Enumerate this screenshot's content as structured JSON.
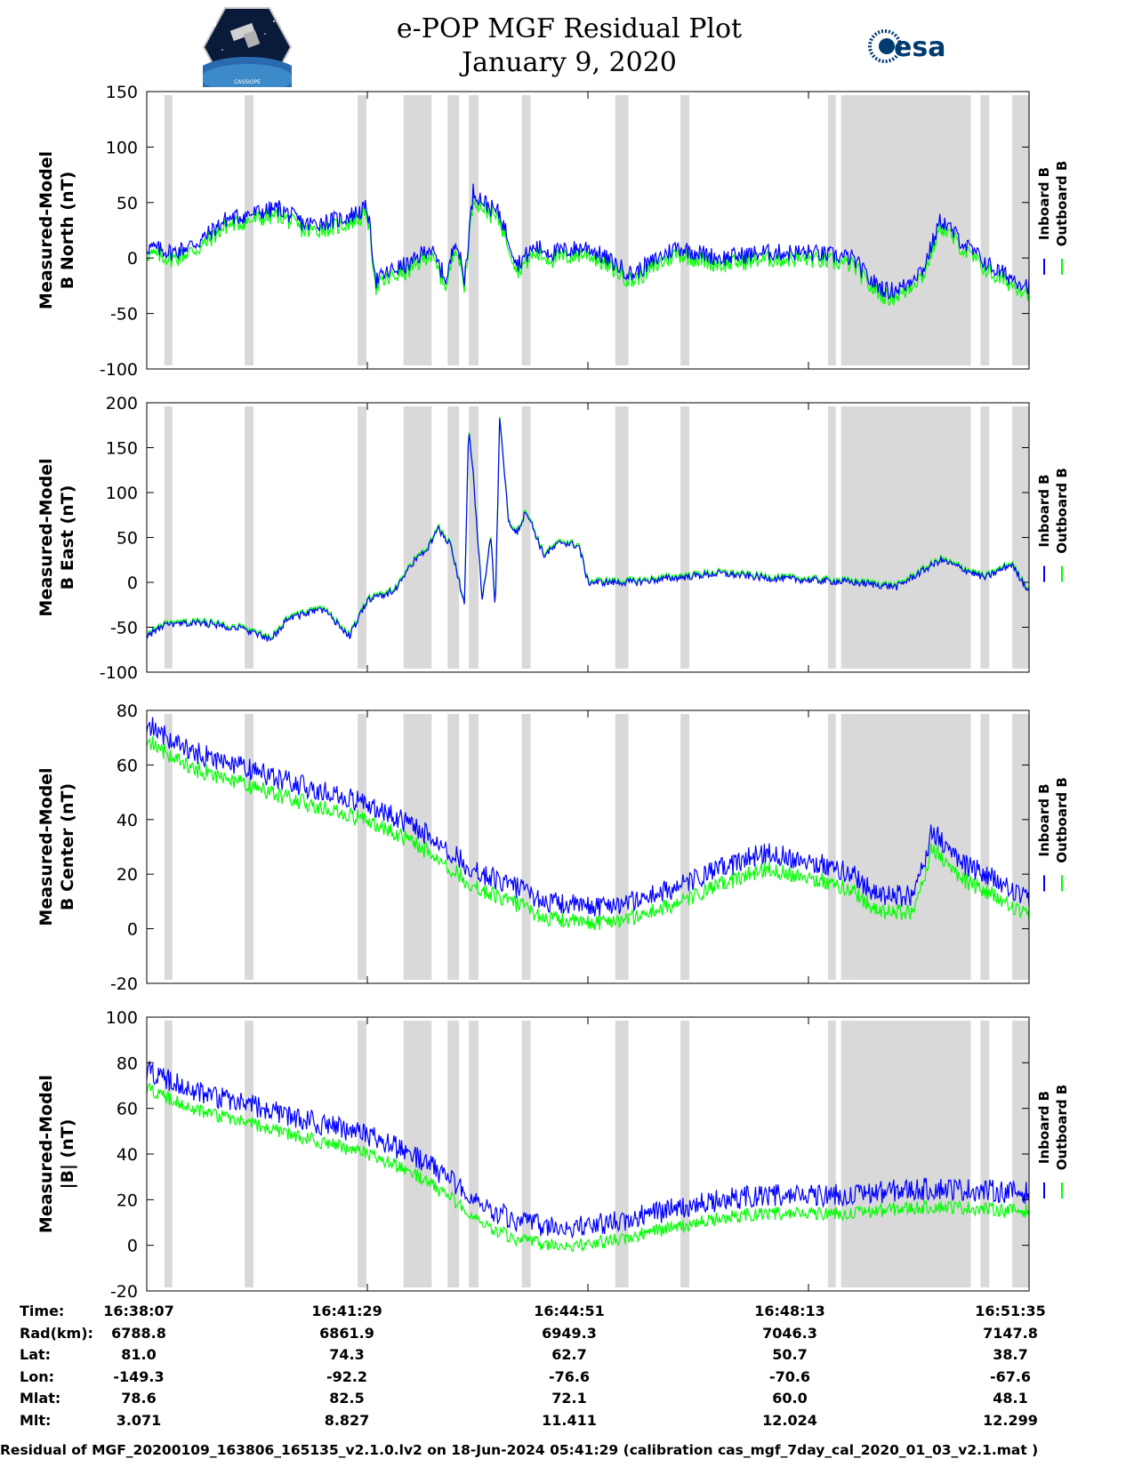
{
  "header": {
    "title_line1": "e-POP MGF Residual Plot",
    "title_line2": "January 9, 2020",
    "left_logo_text": "CASSIOPE",
    "right_logo_text": "esa"
  },
  "colors": {
    "inboard": "#0000ff",
    "outboard": "#00ff00",
    "gap": "#d9d9d9"
  },
  "legend": {
    "inboard": "Inboard B",
    "outboard": "Outboard B"
  },
  "gap_intervals_fraction": [
    [
      0.02,
      0.029
    ],
    [
      0.111,
      0.121
    ],
    [
      0.239,
      0.249
    ],
    [
      0.291,
      0.323
    ],
    [
      0.341,
      0.354
    ],
    [
      0.365,
      0.376
    ],
    [
      0.425,
      0.435
    ],
    [
      0.531,
      0.546
    ],
    [
      0.605,
      0.615
    ],
    [
      0.772,
      0.781
    ],
    [
      0.787,
      0.797
    ],
    [
      0.797,
      0.934
    ],
    [
      0.945,
      0.955
    ],
    [
      0.981,
      1.0
    ]
  ],
  "chart_data": [
    {
      "type": "line",
      "ylabel": "Measured-Model\nB North (nT)",
      "ylim": [
        -100,
        150
      ],
      "yticks": [
        -100,
        -50,
        0,
        50,
        100,
        150
      ],
      "x": [
        0,
        0.03,
        0.06,
        0.09,
        0.12,
        0.15,
        0.18,
        0.22,
        0.25,
        0.26,
        0.28,
        0.3,
        0.32,
        0.34,
        0.35,
        0.36,
        0.37,
        0.39,
        0.4,
        0.42,
        0.44,
        0.46,
        0.5,
        0.55,
        0.6,
        0.65,
        0.7,
        0.75,
        0.8,
        0.82,
        0.84,
        0.86,
        0.87,
        0.88,
        0.9,
        0.93,
        0.96,
        1.0
      ],
      "series": [
        {
          "name": "Inboard B",
          "offset": 0,
          "noise": 8,
          "values": [
            10,
            5,
            15,
            35,
            40,
            45,
            30,
            35,
            45,
            -20,
            -10,
            -5,
            10,
            -20,
            20,
            -20,
            60,
            45,
            40,
            -5,
            10,
            5,
            10,
            -15,
            10,
            0,
            5,
            5,
            0,
            -20,
            -30,
            -25,
            -15,
            -10,
            35,
            10,
            -10,
            -25
          ]
        },
        {
          "name": "Outboard B",
          "offset": -6,
          "noise": 8,
          "values": [
            10,
            5,
            15,
            35,
            40,
            45,
            30,
            35,
            45,
            -20,
            -10,
            -5,
            10,
            -20,
            20,
            -20,
            60,
            45,
            40,
            -5,
            10,
            5,
            10,
            -15,
            10,
            0,
            5,
            5,
            0,
            -20,
            -30,
            -25,
            -15,
            -10,
            35,
            10,
            -10,
            -25
          ]
        }
      ]
    },
    {
      "type": "line",
      "ylabel": "Measured-Model\nB East (nT)",
      "ylim": [
        -100,
        200
      ],
      "yticks": [
        -100,
        -50,
        0,
        50,
        100,
        150,
        200
      ],
      "x": [
        0,
        0.02,
        0.06,
        0.1,
        0.12,
        0.14,
        0.16,
        0.2,
        0.23,
        0.25,
        0.28,
        0.3,
        0.32,
        0.33,
        0.345,
        0.36,
        0.365,
        0.37,
        0.38,
        0.39,
        0.395,
        0.4,
        0.41,
        0.42,
        0.43,
        0.45,
        0.47,
        0.49,
        0.5,
        0.55,
        0.6,
        0.65,
        0.7,
        0.8,
        0.85,
        0.9,
        0.95,
        0.98,
        1.0
      ],
      "series": [
        {
          "name": "Inboard B",
          "offset": 0,
          "noise": 4,
          "values": [
            -60,
            -48,
            -45,
            -50,
            -55,
            -65,
            -40,
            -30,
            -60,
            -20,
            -10,
            20,
            40,
            60,
            40,
            -25,
            175,
            120,
            -20,
            50,
            -30,
            180,
            70,
            55,
            80,
            30,
            45,
            40,
            0,
            0,
            5,
            10,
            5,
            0,
            -5,
            25,
            5,
            20,
            -10
          ]
        },
        {
          "name": "Outboard B",
          "offset": 2,
          "noise": 4,
          "values": [
            -60,
            -48,
            -45,
            -50,
            -55,
            -65,
            -40,
            -30,
            -60,
            -20,
            -10,
            20,
            40,
            60,
            40,
            -25,
            175,
            120,
            -20,
            50,
            -30,
            180,
            70,
            55,
            80,
            30,
            45,
            40,
            0,
            0,
            5,
            10,
            5,
            0,
            -5,
            25,
            5,
            20,
            -10
          ]
        }
      ]
    },
    {
      "type": "line",
      "ylabel": "Measured-Model\nB Center (nT)",
      "ylim": [
        -20,
        80
      ],
      "yticks": [
        -20,
        0,
        20,
        40,
        60,
        80
      ],
      "x": [
        0,
        0.05,
        0.1,
        0.15,
        0.2,
        0.25,
        0.3,
        0.33,
        0.36,
        0.38,
        0.42,
        0.45,
        0.5,
        0.55,
        0.6,
        0.65,
        0.7,
        0.75,
        0.8,
        0.83,
        0.87,
        0.89,
        0.92,
        0.96,
        1.0
      ],
      "series": [
        {
          "name": "Inboard B",
          "offset": 0,
          "noise": 4,
          "values": [
            75,
            65,
            60,
            55,
            50,
            46,
            38,
            32,
            24,
            20,
            15,
            10,
            8,
            10,
            15,
            22,
            28,
            25,
            20,
            12,
            12,
            36,
            25,
            18,
            10
          ]
        },
        {
          "name": "Outboard B",
          "offset": -6,
          "noise": 3,
          "values": [
            75,
            65,
            60,
            55,
            50,
            46,
            38,
            32,
            24,
            20,
            15,
            10,
            8,
            10,
            15,
            22,
            28,
            25,
            20,
            12,
            12,
            36,
            25,
            18,
            10
          ]
        }
      ]
    },
    {
      "type": "line",
      "ylabel": "Measured-Model\n|B| (nT)",
      "ylim": [
        -20,
        100
      ],
      "yticks": [
        -20,
        0,
        20,
        40,
        60,
        80,
        100
      ],
      "x": [
        0,
        0.05,
        0.1,
        0.15,
        0.2,
        0.25,
        0.3,
        0.34,
        0.38,
        0.42,
        0.46,
        0.5,
        0.55,
        0.6,
        0.65,
        0.7,
        0.75,
        0.8,
        0.85,
        0.9,
        0.95,
        1.0
      ],
      "series": [
        {
          "name": "Inboard B",
          "offset": 0,
          "noise": 5,
          "values": [
            77,
            68,
            63,
            58,
            53,
            48,
            40,
            30,
            18,
            10,
            8,
            8,
            12,
            16,
            20,
            22,
            22,
            22,
            24,
            25,
            24,
            23
          ]
        },
        {
          "name": "Outboard B",
          "offset": -8,
          "noise": 3,
          "values": [
            77,
            68,
            63,
            58,
            53,
            48,
            40,
            30,
            18,
            10,
            8,
            8,
            12,
            16,
            20,
            22,
            22,
            22,
            24,
            25,
            24,
            23
          ]
        }
      ]
    }
  ],
  "info_table": {
    "labels": [
      "Time:",
      "Rad(km):",
      "Lat:",
      "Lon:",
      "Mlat:",
      "Mlt:"
    ],
    "columns": [
      [
        "16:38:07",
        "6788.8",
        "81.0",
        "-149.3",
        "78.6",
        "3.071"
      ],
      [
        "16:41:29",
        "6861.9",
        "74.3",
        "-92.2",
        "82.5",
        "8.827"
      ],
      [
        "16:44:51",
        "6949.3",
        "62.7",
        "-76.6",
        "72.1",
        "11.411"
      ],
      [
        "16:48:13",
        "7046.3",
        "50.7",
        "-70.6",
        "60.0",
        "12.024"
      ],
      [
        "16:51:35",
        "7147.8",
        "38.7",
        "-67.6",
        "48.1",
        "12.299"
      ]
    ]
  },
  "footer": "Residual of MGF_20200109_163806_165135_v2.1.0.lv2 on 18-Jun-2024 05:41:29 (calibration cas_mgf_7day_cal_2020_01_03_v2.1.mat )"
}
